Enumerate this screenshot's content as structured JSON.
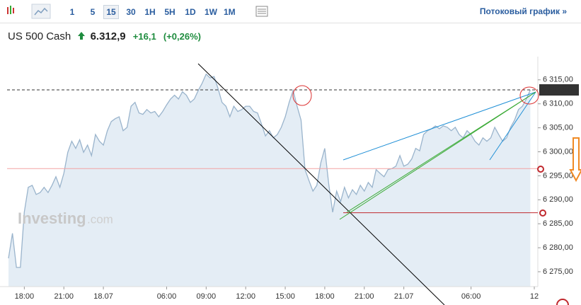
{
  "toolbar": {
    "intervals": [
      "1",
      "5",
      "15",
      "30",
      "1H",
      "5H",
      "1D",
      "1W",
      "1M"
    ],
    "selected_interval": "15",
    "stream_link": "Потоковый график »"
  },
  "instrument": {
    "name": "US 500 Cash",
    "price": "6.312,9",
    "change": "+16,1",
    "change_pct": "(+0,26%)"
  },
  "watermark": {
    "brand": "Investing",
    "suffix": ".com"
  },
  "chart_data": {
    "type": "area",
    "line_color": "#9ab4cc",
    "fill_color": "#e4edf5",
    "categories": [
      null,
      null,
      null,
      null,
      "18:00",
      null,
      null,
      null,
      null,
      null,
      null,
      null,
      null,
      null,
      "21:00",
      null,
      null,
      null,
      null,
      null,
      null,
      null,
      null,
      null,
      "18.07",
      null,
      null,
      null,
      null,
      null,
      null,
      null,
      null,
      null,
      null,
      null,
      null,
      null,
      null,
      null,
      "06:00",
      null,
      null,
      null,
      null,
      null,
      null,
      null,
      null,
      null,
      "09:00",
      null,
      null,
      null,
      null,
      null,
      null,
      null,
      null,
      null,
      "12:00",
      null,
      null,
      null,
      null,
      null,
      null,
      null,
      null,
      null,
      "15:00",
      null,
      null,
      null,
      null,
      null,
      null,
      null,
      null,
      null,
      "18:00",
      null,
      null,
      null,
      null,
      null,
      null,
      null,
      null,
      null,
      "21:00",
      null,
      null,
      null,
      null,
      null,
      null,
      null,
      null,
      null,
      "21.07",
      null,
      null,
      null,
      null,
      null,
      null,
      null,
      null,
      null,
      null,
      null,
      null,
      null,
      null,
      null,
      null,
      "06:00",
      null,
      null,
      null,
      null,
      null,
      null,
      null,
      null,
      null,
      null,
      null,
      null,
      null,
      null,
      null,
      "12"
    ],
    "values": [
      6277.8,
      6283.0,
      6275.9,
      6275.9,
      6287.4,
      6292.6,
      6293.0,
      6291.1,
      6291.5,
      6292.6,
      6291.5,
      6293.0,
      6294.8,
      6292.6,
      6295.5,
      6299.9,
      6302.2,
      6300.7,
      6302.5,
      6299.9,
      6301.4,
      6299.2,
      6303.6,
      6302.2,
      6301.4,
      6304.4,
      6306.3,
      6306.9,
      6307.3,
      6304.4,
      6305.1,
      6309.5,
      6310.3,
      6308.1,
      6307.8,
      6308.8,
      6308.1,
      6308.4,
      6307.3,
      6308.4,
      6309.8,
      6311.0,
      6311.8,
      6311.0,
      6312.5,
      6311.8,
      6310.3,
      6311.0,
      6312.8,
      6314.3,
      6316.2,
      6315.4,
      6315.7,
      6313.2,
      6310.3,
      6309.5,
      6307.3,
      6309.5,
      6308.4,
      6308.8,
      6309.5,
      6309.5,
      6308.4,
      6308.1,
      6305.8,
      6303.3,
      6304.4,
      6302.9,
      6303.6,
      6305.1,
      6307.3,
      6310.3,
      6312.8,
      6309.5,
      6306.6,
      6296.3,
      6294.0,
      6291.8,
      6293.0,
      6297.7,
      6300.7,
      6293.3,
      6287.4,
      6291.8,
      6289.6,
      6292.6,
      6290.4,
      6292.1,
      6291.1,
      6293.0,
      6291.8,
      6293.6,
      6292.6,
      6296.3,
      6295.5,
      6294.8,
      6296.3,
      6296.5,
      6297.0,
      6299.2,
      6297.0,
      6297.4,
      6298.5,
      6300.7,
      6300.2,
      6303.6,
      6304.4,
      6304.8,
      6305.4,
      6304.8,
      6305.4,
      6305.1,
      6304.4,
      6305.1,
      6303.6,
      6302.9,
      6304.4,
      6303.6,
      6302.2,
      6301.4,
      6302.9,
      6302.2,
      6302.9,
      6305.1,
      6303.6,
      6302.2,
      6302.9,
      6305.1,
      6306.6,
      6308.8,
      6309.5,
      6311.0,
      6312.9,
      null
    ],
    "ylim": [
      6271.9,
      6319.1
    ],
    "yticks": [
      {
        "value": 6275,
        "label": "6 275,00"
      },
      {
        "value": 6280,
        "label": "6 280,00"
      },
      {
        "value": 6285,
        "label": "6 285,00"
      },
      {
        "value": 6290,
        "label": "6 290,00"
      },
      {
        "value": 6295,
        "label": "6 295,00"
      },
      {
        "value": 6300,
        "label": "6 300,00"
      },
      {
        "value": 6305,
        "label": "6 305,00"
      },
      {
        "value": 6310,
        "label": "6 310,00"
      },
      {
        "value": 6315,
        "label": "6 315,00"
      }
    ],
    "grid": false,
    "reference_lines": [
      {
        "value": 6312.9,
        "label": "6 312,90",
        "color": "#333333",
        "dashed": true
      },
      {
        "value": 6296.5,
        "color": "#f2a3a3",
        "dashed": false
      },
      {
        "value": 6287.3,
        "color": "#c0282d",
        "dashed": false
      }
    ]
  }
}
